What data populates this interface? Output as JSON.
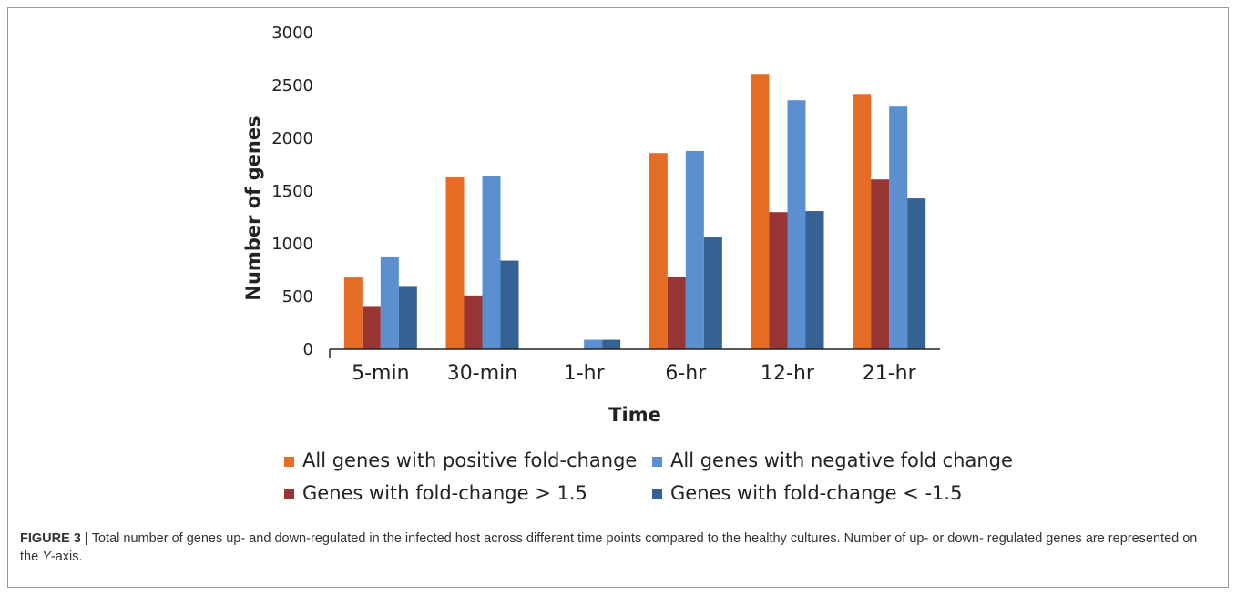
{
  "chart_data": {
    "type": "bar",
    "xlabel": "Time",
    "ylabel": "Number of genes",
    "ylim": [
      0,
      3000
    ],
    "yticks": [
      0,
      500,
      1000,
      1500,
      2000,
      2500,
      3000
    ],
    "grid": false,
    "legend_position": "bottom",
    "categories": [
      "5-min",
      "30-min",
      "1-hr",
      "6-hr",
      "12-hr",
      "21-hr"
    ],
    "series": [
      {
        "name": "All genes with positive fold-change",
        "color": "#e46c24",
        "values": [
          680,
          1630,
          0,
          1860,
          2610,
          2420
        ]
      },
      {
        "name": "Genes with fold-change > 1.5",
        "color": "#983535",
        "values": [
          410,
          510,
          0,
          690,
          1300,
          1610
        ]
      },
      {
        "name": "All genes with negative fold change",
        "color": "#5b8fcf",
        "values": [
          880,
          1640,
          90,
          1880,
          2360,
          2300
        ]
      },
      {
        "name": "Genes with fold-change < -1.5",
        "color": "#366193",
        "values": [
          600,
          840,
          90,
          1060,
          1310,
          1430
        ]
      }
    ]
  },
  "caption": {
    "label": "FIGURE 3 |",
    "text_before": " Total number of genes up- and down-regulated in the infected host across different time points compared to the healthy cultures. Number of up- or down- regulated genes are represented on the ",
    "axis_name": "Y",
    "text_after": "-axis."
  }
}
